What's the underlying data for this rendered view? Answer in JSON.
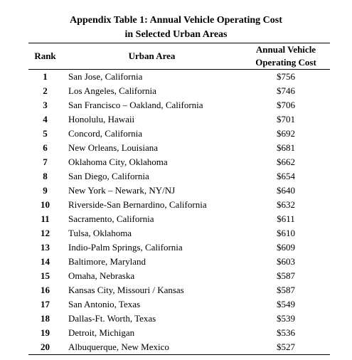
{
  "title": {
    "line1": "Appendix Table 1: Annual Vehicle Operating Cost",
    "line2": "in Selected Urban Areas"
  },
  "columns": {
    "rank": "Rank",
    "area": "Urban Area",
    "cost_line1": "Annual Vehicle",
    "cost_line2": "Operating Cost"
  },
  "rows": [
    {
      "rank": "1",
      "area": "San Jose, California",
      "cost": "$756"
    },
    {
      "rank": "2",
      "area": "Los Angeles, California",
      "cost": "$746"
    },
    {
      "rank": "3",
      "area": "San Francisco – Oakland, California",
      "cost": "$706"
    },
    {
      "rank": "4",
      "area": "Honolulu, Hawaii",
      "cost": "$701"
    },
    {
      "rank": "5",
      "area": "Concord, California",
      "cost": "$692"
    },
    {
      "rank": "6",
      "area": "New Orleans, Louisiana",
      "cost": "$681"
    },
    {
      "rank": "7",
      "area": "Oklahoma City, Oklahoma",
      "cost": "$662"
    },
    {
      "rank": "8",
      "area": "San Diego, California",
      "cost": "$654"
    },
    {
      "rank": "9",
      "area": "New York – Newark, NY/NJ",
      "cost": "$640"
    },
    {
      "rank": "10",
      "area": "Riverside-San Bernardino, California",
      "cost": "$632"
    },
    {
      "rank": "11",
      "area": "Sacramento, California",
      "cost": "$611"
    },
    {
      "rank": "12",
      "area": "Tulsa, Oklahoma",
      "cost": "$610"
    },
    {
      "rank": "13",
      "area": "Indio-Palm Springs, California",
      "cost": "$609"
    },
    {
      "rank": "14",
      "area": "Baltimore, Maryland",
      "cost": "$603"
    },
    {
      "rank": "15",
      "area": "Omaha, Nebraska",
      "cost": "$587"
    },
    {
      "rank": "16",
      "area": "Kansas City, Missouri / Kansas",
      "cost": "$587"
    },
    {
      "rank": "17",
      "area": "San Antonio, Texas",
      "cost": "$549"
    },
    {
      "rank": "18",
      "area": "Dallas-Ft. Worth, Texas",
      "cost": "$539"
    },
    {
      "rank": "19",
      "area": "Detroit, Michigan",
      "cost": "$536"
    },
    {
      "rank": "20",
      "area": "Albuquerque, New Mexico",
      "cost": "$527"
    }
  ]
}
